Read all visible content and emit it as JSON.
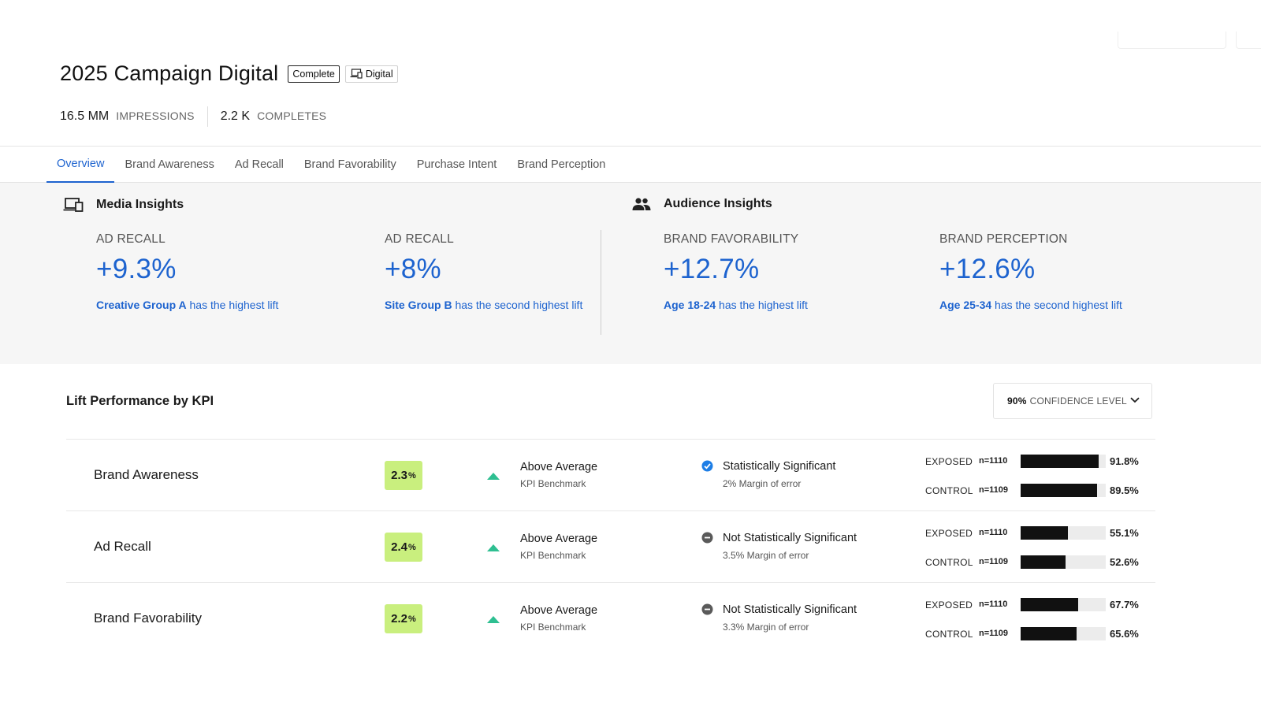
{
  "header": {
    "title": "2025  Campaign Digital",
    "status_chip": "Complete",
    "channel_chip": "Digital",
    "stats": [
      {
        "value": "16.5 MM",
        "label": "IMPRESSIONS"
      },
      {
        "value": "2.2 K",
        "label": "COMPLETES"
      }
    ]
  },
  "tabs": [
    {
      "label": "Overview",
      "active": true
    },
    {
      "label": "Brand Awareness",
      "active": false
    },
    {
      "label": "Ad Recall",
      "active": false
    },
    {
      "label": "Brand Favorability",
      "active": false
    },
    {
      "label": "Purchase Intent",
      "active": false
    },
    {
      "label": "Brand Perception",
      "active": false
    }
  ],
  "insights": {
    "media": {
      "title": "Media Insights",
      "icon": "devices-icon",
      "metrics": [
        {
          "label": "AD RECALL",
          "value": "+9.3%",
          "highlight": "Creative Group A",
          "desc": " has the highest lift"
        },
        {
          "label": "AD RECALL",
          "value": "+8%",
          "highlight": "Site Group B",
          "desc": " has the second highest lift"
        }
      ]
    },
    "audience": {
      "title": "Audience Insights",
      "icon": "people-icon",
      "metrics": [
        {
          "label": "BRAND FAVORABILITY",
          "value": "+12.7%",
          "highlight": "Age 18-24",
          "desc": " has the highest lift"
        },
        {
          "label": "BRAND PERCEPTION",
          "value": "+12.6%",
          "highlight": "Age 25-34",
          "desc": " has the second highest lift"
        }
      ]
    }
  },
  "lift": {
    "title": "Lift Performance by KPI",
    "confidence": {
      "value": "90%",
      "label": "CONFIDENCE LEVEL"
    },
    "rows": [
      {
        "name": "Brand Awareness",
        "lift_value": "2.3",
        "lift_unit": "%",
        "benchmark": "Above Average",
        "benchmark_sub": "KPI Benchmark",
        "significance": "Statistically Significant",
        "significant": true,
        "margin": "2% Margin of error",
        "exposed": {
          "label": "EXPOSED",
          "n": "n=1110",
          "value": "91.8%",
          "pct": 91.8
        },
        "control": {
          "label": "CONTROL",
          "n": "n=1109",
          "value": "89.5%",
          "pct": 89.5
        }
      },
      {
        "name": "Ad Recall",
        "lift_value": "2.4",
        "lift_unit": "%",
        "benchmark": "Above Average",
        "benchmark_sub": "KPI Benchmark",
        "significance": "Not Statistically Significant",
        "significant": false,
        "margin": "3.5% Margin of error",
        "exposed": {
          "label": "EXPOSED",
          "n": "n=1110",
          "value": "55.1%",
          "pct": 55.1
        },
        "control": {
          "label": "CONTROL",
          "n": "n=1109",
          "value": "52.6%",
          "pct": 52.6
        }
      },
      {
        "name": "Brand Favorability",
        "lift_value": "2.2",
        "lift_unit": "%",
        "benchmark": "Above Average",
        "benchmark_sub": "KPI Benchmark",
        "significance": "Not Statistically Significant",
        "significant": false,
        "margin": "3.3% Margin of error",
        "exposed": {
          "label": "EXPOSED",
          "n": "n=1110",
          "value": "67.7%",
          "pct": 67.7
        },
        "control": {
          "label": "CONTROL",
          "n": "n=1109",
          "value": "65.6%",
          "pct": 65.6
        }
      }
    ]
  },
  "colors": {
    "accent": "#1d63cf",
    "lift_badge": "#c9ef7e",
    "trend_up": "#2ebf91",
    "bar": "#111111",
    "significant_icon": "#1d7ee6",
    "not_significant_icon": "#5a5a5a"
  }
}
